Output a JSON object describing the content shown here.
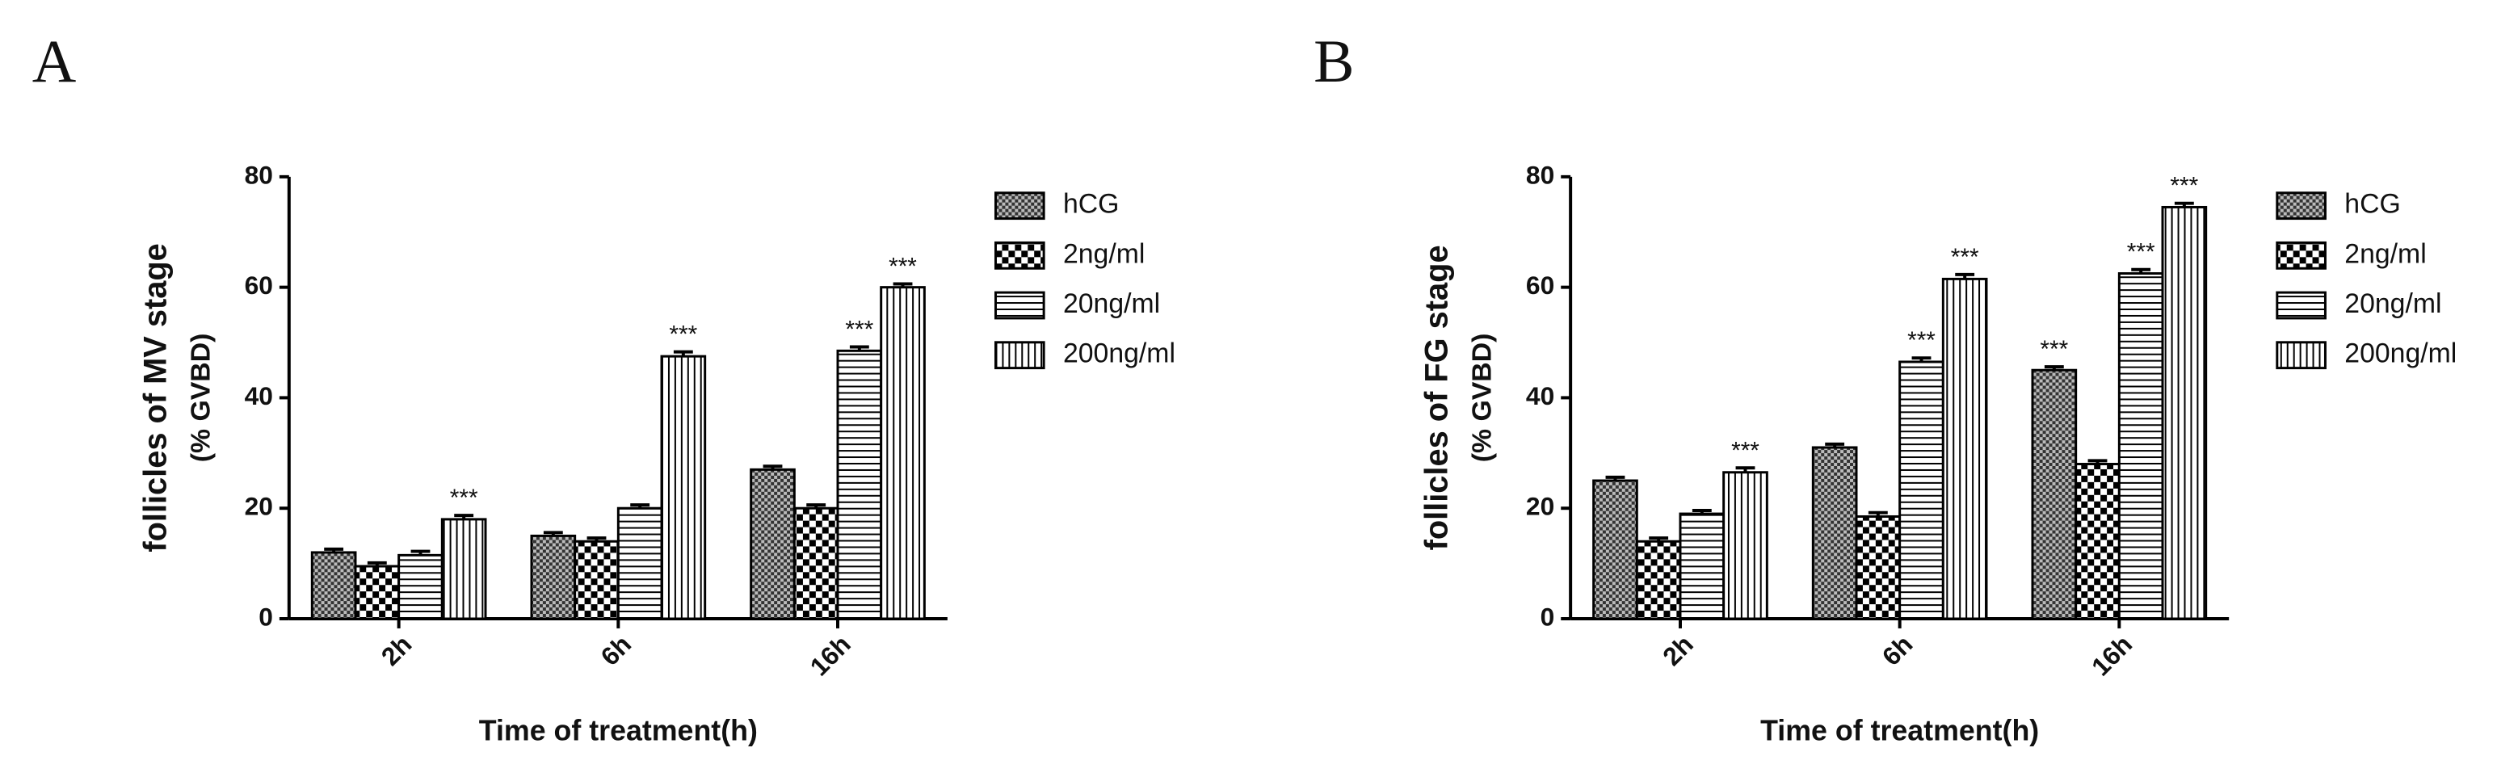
{
  "chart_data": [
    {
      "type": "bar",
      "panel": "A",
      "y_label": "follicles of MV stage",
      "y_label_unit": "(% GVBD)",
      "x_label": "Time of treatment(h)",
      "categories": [
        "2h",
        "6h",
        "16h"
      ],
      "ylim": [
        0,
        80
      ],
      "yticks": [
        0,
        20,
        40,
        60,
        80
      ],
      "series": [
        {
          "name": "hCG",
          "color": "#000000",
          "values": [
            12,
            15,
            27
          ],
          "errors": [
            0.6,
            0.6,
            0.6
          ],
          "significance": [
            null,
            null,
            null
          ]
        },
        {
          "name": "2ng/ml",
          "color": "#000000",
          "values": [
            9.5,
            14,
            20
          ],
          "errors": [
            0.6,
            0.6,
            0.6
          ],
          "significance": [
            null,
            null,
            null
          ]
        },
        {
          "name": "20ng/ml",
          "color": "#000000",
          "values": [
            11.5,
            20,
            48.5
          ],
          "errors": [
            0.7,
            0.6,
            0.7
          ],
          "significance": [
            null,
            null,
            "***"
          ]
        },
        {
          "name": "200ng/ml",
          "color": "#000000",
          "values": [
            18,
            47.5,
            60
          ],
          "errors": [
            0.7,
            0.8,
            0.6
          ],
          "significance": [
            "***",
            "***",
            "***"
          ]
        }
      ]
    },
    {
      "type": "bar",
      "panel": "B",
      "y_label": "follicles of FG stage",
      "y_label_unit": "(% GVBD)",
      "x_label": "Time of treatment(h)",
      "categories": [
        "2h",
        "6h",
        "16h"
      ],
      "ylim": [
        0,
        80
      ],
      "yticks": [
        0,
        20,
        40,
        60,
        80
      ],
      "series": [
        {
          "name": "hCG",
          "color": "#000000",
          "values": [
            25,
            31,
            45
          ],
          "errors": [
            0.6,
            0.6,
            0.6
          ],
          "significance": [
            null,
            null,
            "***"
          ]
        },
        {
          "name": "2ng/ml",
          "color": "#000000",
          "values": [
            14,
            18.5,
            28
          ],
          "errors": [
            0.6,
            0.7,
            0.6
          ],
          "significance": [
            null,
            null,
            null
          ]
        },
        {
          "name": "20ng/ml",
          "color": "#000000",
          "values": [
            19,
            46.5,
            62.5
          ],
          "errors": [
            0.6,
            0.7,
            0.7
          ],
          "significance": [
            null,
            "***",
            "***"
          ]
        },
        {
          "name": "200ng/ml",
          "color": "#000000",
          "values": [
            26.5,
            61.5,
            74.5
          ],
          "errors": [
            0.8,
            0.8,
            0.7
          ],
          "significance": [
            "***",
            "***",
            "***"
          ]
        }
      ]
    }
  ]
}
